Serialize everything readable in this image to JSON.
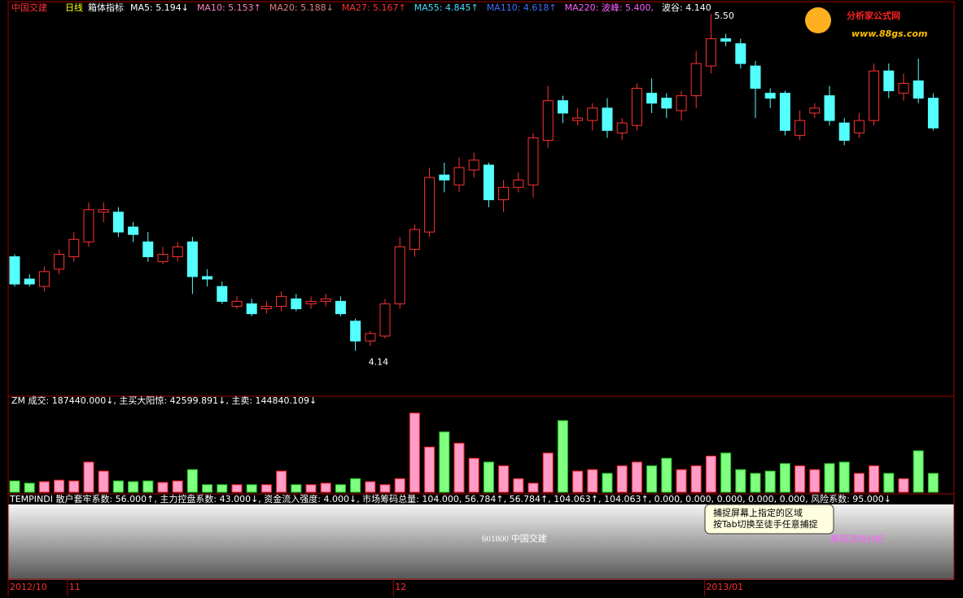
{
  "header": {
    "stock": "中国交建",
    "period": "日线",
    "indicator": "箱体指标",
    "items": [
      {
        "text": "MA5: 5.194↓",
        "color": "#ffffff"
      },
      {
        "text": "MA10: 5.153↑",
        "color": "#ff80c0"
      },
      {
        "text": "MA20: 5.188↓",
        "color": "#e08080"
      },
      {
        "text": "MA27: 5.167↑",
        "color": "#ff3030"
      },
      {
        "text": "MA55: 4.845↑",
        "color": "#40e0ff"
      },
      {
        "text": "MA110: 4.618↑",
        "color": "#4070ff"
      },
      {
        "text": "MA220: 波峰: 5.400,",
        "color": "#ff60ff"
      },
      {
        "text": "波谷: 4.140",
        "color": "#ffffff"
      }
    ]
  },
  "chart_data": [
    {
      "type": "candlestick",
      "ylim": [
        3.98,
        5.54
      ],
      "categories": [
        "2012/10",
        null,
        null,
        null,
        "11",
        null,
        null,
        null,
        null,
        null,
        null,
        null,
        null,
        null,
        null,
        null,
        null,
        null,
        null,
        null,
        null,
        null,
        null,
        null,
        null,
        null,
        "12",
        null,
        null,
        null,
        null,
        null,
        null,
        null,
        null,
        null,
        null,
        null,
        null,
        null,
        null,
        null,
        null,
        null,
        null,
        null,
        null,
        "2013/01",
        null,
        null,
        null,
        null,
        null,
        null,
        null,
        null,
        null,
        null,
        null,
        null,
        null,
        null,
        null
      ],
      "open": [
        4.52,
        4.43,
        4.4,
        4.47,
        4.52,
        4.58,
        4.7,
        4.7,
        4.64,
        4.58,
        4.5,
        4.52,
        4.58,
        4.44,
        4.4,
        4.32,
        4.33,
        4.31,
        4.32,
        4.35,
        4.33,
        4.34,
        4.34,
        4.26,
        4.18,
        4.2,
        4.33,
        4.55,
        4.62,
        4.85,
        4.81,
        4.87,
        4.89,
        4.75,
        4.8,
        4.81,
        4.99,
        5.15,
        5.07,
        5.07,
        5.12,
        5.02,
        5.05,
        5.18,
        5.16,
        5.11,
        5.17,
        5.29,
        5.4,
        5.38,
        5.29,
        5.18,
        5.18,
        5.01,
        5.1,
        5.17,
        5.06,
        5.02,
        5.07,
        5.27,
        5.18,
        5.23,
        5.16
      ],
      "close": [
        4.41,
        4.41,
        4.46,
        4.53,
        4.59,
        4.71,
        4.71,
        4.62,
        4.61,
        4.52,
        4.53,
        4.56,
        4.44,
        4.43,
        4.34,
        4.34,
        4.29,
        4.32,
        4.36,
        4.31,
        4.34,
        4.35,
        4.29,
        4.18,
        4.21,
        4.33,
        4.56,
        4.63,
        4.84,
        4.83,
        4.88,
        4.91,
        4.75,
        4.8,
        4.83,
        5.0,
        5.15,
        5.1,
        5.08,
        5.12,
        5.03,
        5.06,
        5.2,
        5.14,
        5.12,
        5.17,
        5.3,
        5.4,
        5.39,
        5.3,
        5.2,
        5.16,
        5.03,
        5.07,
        5.12,
        5.07,
        4.99,
        5.07,
        5.27,
        5.19,
        5.22,
        5.16,
        5.04
      ],
      "high": [
        4.53,
        4.45,
        4.48,
        4.55,
        4.62,
        4.74,
        4.74,
        4.72,
        4.66,
        4.62,
        4.56,
        4.58,
        4.6,
        4.47,
        4.42,
        4.36,
        4.35,
        4.34,
        4.38,
        4.37,
        4.36,
        4.37,
        4.36,
        4.27,
        4.22,
        4.35,
        4.6,
        4.65,
        4.88,
        4.9,
        4.92,
        4.94,
        4.9,
        4.83,
        4.86,
        5.02,
        5.21,
        5.17,
        5.12,
        5.14,
        5.16,
        5.08,
        5.22,
        5.24,
        5.18,
        5.19,
        5.35,
        5.5,
        5.42,
        5.4,
        5.31,
        5.2,
        5.19,
        5.11,
        5.14,
        5.21,
        5.08,
        5.1,
        5.3,
        5.3,
        5.26,
        5.32,
        5.18
      ],
      "low": [
        4.4,
        4.4,
        4.38,
        4.45,
        4.5,
        4.56,
        4.66,
        4.6,
        4.58,
        4.5,
        4.49,
        4.5,
        4.37,
        4.4,
        4.33,
        4.31,
        4.28,
        4.29,
        4.3,
        4.3,
        4.31,
        4.32,
        4.28,
        4.14,
        4.16,
        4.19,
        4.31,
        4.52,
        4.6,
        4.78,
        4.78,
        4.84,
        4.72,
        4.7,
        4.78,
        4.76,
        4.96,
        5.06,
        5.05,
        5.03,
        5.0,
        4.99,
        5.03,
        5.1,
        5.08,
        5.07,
        5.12,
        5.26,
        5.37,
        5.28,
        5.08,
        5.12,
        5.01,
        4.99,
        5.08,
        5.05,
        4.97,
        5.0,
        5.05,
        5.16,
        5.15,
        5.14,
        5.03
      ]
    },
    {
      "type": "bar",
      "title": "ZM 成交: 187440.000↓, 主买大阳惊: 42599.891↓, 主卖: 144840.109↓",
      "ylim": [
        0,
        850000
      ],
      "values": [
        112500,
        90000,
        105000,
        120000,
        112500,
        300000,
        210000,
        112500,
        105000,
        112500,
        97500,
        112500,
        225000,
        75000,
        75000,
        75000,
        75000,
        75000,
        210000,
        75000,
        75000,
        90000,
        75000,
        135000,
        105000,
        75000,
        135000,
        787500,
        450000,
        600000,
        487500,
        337500,
        300000,
        262500,
        135000,
        90000,
        390000,
        712500,
        210000,
        225000,
        187500,
        262500,
        300000,
        262500,
        337500,
        225000,
        262500,
        360000,
        390000,
        225000,
        187500,
        210000,
        285000,
        262500,
        225000,
        285000,
        300000,
        187500,
        262500,
        187500,
        135000,
        412500,
        187440
      ]
    }
  ],
  "indicator_panel": {
    "header": "TEMPINDI 散户套牢系数: 56.000↑, 主力控盘系数: 43.000↓, 资金流入强度: 4.000↓, 市场筹码总量: 104.000, 56.784↑, 56.784↑, 104.063↑, 104.063↑, 0.000, 0.000, 0.000, 0.000, 0.000, 风险系数: 95.000↓",
    "watermark": "601800  中国交建",
    "watermark2": "筹码流向分析"
  },
  "annotations": {
    "high": "5.50",
    "low": "4.14"
  },
  "tooltip": [
    "捕捉屏幕上指定的区域",
    "按Tab切换至徒手任意捕捉"
  ],
  "logo": {
    "name": "分析家公式网",
    "url": "www.88gs.com"
  }
}
